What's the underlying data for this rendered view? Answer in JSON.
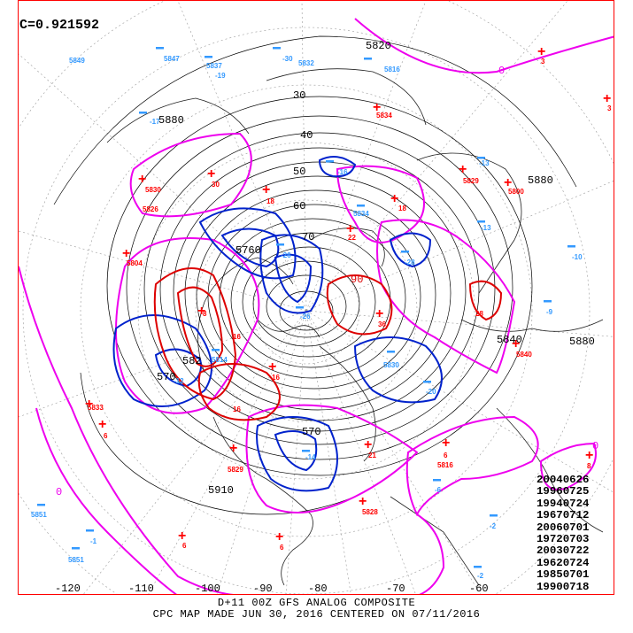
{
  "map": {
    "correlation": "C=0.921592",
    "analog_dates": [
      "20040626",
      "19960725",
      "19940724",
      "19670712",
      "20060701",
      "19720703",
      "20030722",
      "19620724",
      "19850701",
      "19900718"
    ],
    "footer_line1": "D+11 00Z GFS ANALOG COMPOSITE",
    "footer_line2": "CPC MAP MADE JUN 30, 2016 CENTERED ON 07/11/2016",
    "longitude_labels": [
      "-120",
      "-110",
      "-100",
      "-90",
      "-80",
      "-70",
      "-60"
    ],
    "height_contour_labels": [
      "5820",
      "5880",
      "5880",
      "5840",
      "5880",
      "5910",
      "5760",
      "5820",
      "5760"
    ],
    "latitude_labels": [
      "30",
      "40",
      "50",
      "60",
      "70"
    ],
    "anomaly_zero_labels": [
      "0",
      "0",
      "0",
      "0"
    ],
    "anomaly_labels_red": [
      "3",
      "3",
      "5830",
      "5826",
      "5834",
      "5815",
      "5800",
      "5830",
      "5829",
      "5810",
      "5816",
      "5800",
      "5806",
      "5806",
      "5813",
      "5813",
      "5838",
      "5826",
      "5862",
      "5816",
      "5826",
      "5829",
      "5824",
      "5817",
      "5828",
      "6",
      "6",
      "6",
      "5",
      "6",
      "8"
    ],
    "anomaly_labels_blue": [
      "5849",
      "5847",
      "5837",
      "5832",
      "5834",
      "5816",
      "-17",
      "-12",
      "-10",
      "-19",
      "-5",
      "-9",
      "-11",
      "-13",
      "-16",
      "-17",
      "-19",
      "-26",
      "-23",
      "-20",
      "-28",
      "-18",
      "-10",
      "-8",
      "-6",
      "-5",
      "-6",
      "-1",
      "-2",
      "-2",
      "-1",
      "-5851",
      "-5851",
      "-5853"
    ],
    "colors": {
      "frame": "#ff0000",
      "height_contour": "#000000",
      "positive_anomaly": "#dd0000",
      "negative_anomaly": "#0022cc",
      "zero_anomaly": "#ee00ee",
      "label_blue": "#3399ff",
      "label_red": "#ff0000"
    }
  }
}
